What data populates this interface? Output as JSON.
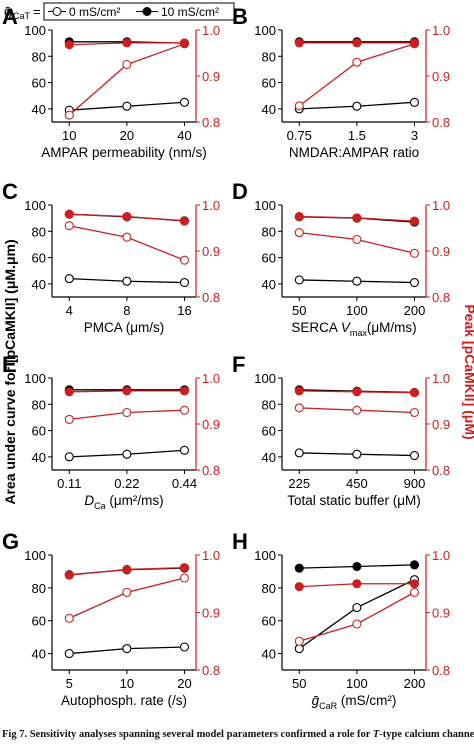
{
  "legend": {
    "symbol": "ḡ",
    "symbol_sub": "CaT",
    "eq": "=",
    "open_label": "0 mS/cm²",
    "filled_label": "10 mS/cm²"
  },
  "shared_labels": {
    "left_ylabel": "Area under curve for [pCaMKII] (μM.μm)",
    "right_ylabel": "Peak [pCaMKII] (μM)"
  },
  "colors": {
    "black": "#000000",
    "red": "#cc1f1f"
  },
  "caption": {
    "bold": "Fig 7. Sensitivity analyses spanning several model parameters confirmed a role for",
    "italic": "T",
    "rest": "-type calcium channels in"
  },
  "chart_data": [
    {
      "id": "A",
      "type": "line",
      "xlabel": "AMPAR permeability (nm/s)",
      "categories": [
        "10",
        "20",
        "40"
      ],
      "ylim_left": [
        30,
        100
      ],
      "yticks_left": [
        40,
        60,
        80,
        100
      ],
      "ylim_right": [
        0.8,
        1.0
      ],
      "yticks_right": [
        "0.8",
        "0.9",
        "1.0"
      ],
      "series": [
        {
          "name": "0 mS/cm²",
          "axis": "left",
          "color": "black",
          "marker": "open",
          "values": [
            39,
            42,
            45
          ]
        },
        {
          "name": "10 mS/cm²",
          "axis": "left",
          "color": "black",
          "marker": "filled",
          "values": [
            91,
            91,
            90
          ]
        },
        {
          "name": "0 mS/cm²",
          "axis": "right",
          "color": "red",
          "marker": "open",
          "values": [
            0.815,
            0.925,
            0.97
          ]
        },
        {
          "name": "10 mS/cm²",
          "axis": "right",
          "color": "red",
          "marker": "filled",
          "values": [
            0.968,
            0.972,
            0.972
          ]
        }
      ]
    },
    {
      "id": "B",
      "type": "line",
      "xlabel": "NMDAR:AMPAR ratio",
      "categories": [
        "0.75",
        "1.5",
        "3"
      ],
      "ylim_left": [
        30,
        100
      ],
      "yticks_left": [
        40,
        60,
        80,
        100
      ],
      "ylim_right": [
        0.8,
        1.0
      ],
      "yticks_right": [
        "0.8",
        "0.9",
        "1.0"
      ],
      "series": [
        {
          "name": "0 mS/cm²",
          "axis": "left",
          "color": "black",
          "marker": "open",
          "values": [
            40,
            42,
            45
          ]
        },
        {
          "name": "10 mS/cm²",
          "axis": "left",
          "color": "black",
          "marker": "filled",
          "values": [
            91,
            91,
            91
          ]
        },
        {
          "name": "0 mS/cm²",
          "axis": "right",
          "color": "red",
          "marker": "open",
          "values": [
            0.835,
            0.93,
            0.97
          ]
        },
        {
          "name": "10 mS/cm²",
          "axis": "right",
          "color": "red",
          "marker": "filled",
          "values": [
            0.972,
            0.972,
            0.972
          ]
        }
      ]
    },
    {
      "id": "C",
      "type": "line",
      "xlabel": "PMCA (μm/s)",
      "categories": [
        "4",
        "8",
        "16"
      ],
      "ylim_left": [
        30,
        100
      ],
      "yticks_left": [
        40,
        60,
        80,
        100
      ],
      "ylim_right": [
        0.8,
        1.0
      ],
      "yticks_right": [
        "0.8",
        "0.9",
        "1.0"
      ],
      "series": [
        {
          "name": "0 mS/cm²",
          "axis": "left",
          "color": "black",
          "marker": "open",
          "values": [
            44,
            42,
            41
          ]
        },
        {
          "name": "10 mS/cm²",
          "axis": "left",
          "color": "black",
          "marker": "filled",
          "values": [
            93,
            91,
            88
          ]
        },
        {
          "name": "0 mS/cm²",
          "axis": "right",
          "color": "red",
          "marker": "open",
          "values": [
            0.955,
            0.93,
            0.88
          ]
        },
        {
          "name": "10 mS/cm²",
          "axis": "right",
          "color": "red",
          "marker": "filled",
          "values": [
            0.98,
            0.975,
            0.965
          ]
        }
      ]
    },
    {
      "id": "D",
      "type": "line",
      "xlabel_main": "SERCA ",
      "xlabel_var": "V",
      "xlabel_sub": "max",
      "xlabel_rest": "(μM/ms)",
      "categories": [
        "50",
        "100",
        "200"
      ],
      "ylim_left": [
        30,
        100
      ],
      "yticks_left": [
        40,
        60,
        80,
        100
      ],
      "ylim_right": [
        0.8,
        1.0
      ],
      "yticks_right": [
        "0.8",
        "0.9",
        "1.0"
      ],
      "series": [
        {
          "name": "0 mS/cm²",
          "axis": "left",
          "color": "black",
          "marker": "open",
          "values": [
            43,
            42,
            41
          ]
        },
        {
          "name": "10 mS/cm²",
          "axis": "left",
          "color": "black",
          "marker": "filled",
          "values": [
            91,
            90,
            87
          ]
        },
        {
          "name": "0 mS/cm²",
          "axis": "right",
          "color": "red",
          "marker": "open",
          "values": [
            0.94,
            0.925,
            0.895
          ]
        },
        {
          "name": "10 mS/cm²",
          "axis": "right",
          "color": "red",
          "marker": "filled",
          "values": [
            0.975,
            0.972,
            0.965
          ]
        }
      ]
    },
    {
      "id": "E",
      "type": "line",
      "xlabel_var": "D",
      "xlabel_sub": "Ca",
      "xlabel_rest": " (μm²/ms)",
      "categories": [
        "0.11",
        "0.22",
        "0.44"
      ],
      "ylim_left": [
        30,
        100
      ],
      "yticks_left": [
        40,
        60,
        80,
        100
      ],
      "ylim_right": [
        0.8,
        1.0
      ],
      "yticks_right": [
        "0.8",
        "0.9",
        "1.0"
      ],
      "series": [
        {
          "name": "0 mS/cm²",
          "axis": "left",
          "color": "black",
          "marker": "open",
          "values": [
            40,
            42,
            45
          ]
        },
        {
          "name": "10 mS/cm²",
          "axis": "left",
          "color": "black",
          "marker": "filled",
          "values": [
            91,
            91,
            91
          ]
        },
        {
          "name": "0 mS/cm²",
          "axis": "right",
          "color": "red",
          "marker": "open",
          "values": [
            0.91,
            0.925,
            0.93
          ]
        },
        {
          "name": "10 mS/cm²",
          "axis": "right",
          "color": "red",
          "marker": "filled",
          "values": [
            0.97,
            0.972,
            0.972
          ]
        }
      ]
    },
    {
      "id": "F",
      "type": "line",
      "xlabel": "Total static buffer (μM)",
      "categories": [
        "225",
        "450",
        "900"
      ],
      "ylim_left": [
        30,
        100
      ],
      "yticks_left": [
        40,
        60,
        80,
        100
      ],
      "ylim_right": [
        0.8,
        1.0
      ],
      "yticks_right": [
        "0.8",
        "0.9",
        "1.0"
      ],
      "series": [
        {
          "name": "0 mS/cm²",
          "axis": "left",
          "color": "black",
          "marker": "open",
          "values": [
            43,
            42,
            41
          ]
        },
        {
          "name": "10 mS/cm²",
          "axis": "left",
          "color": "black",
          "marker": "filled",
          "values": [
            91,
            90,
            89
          ]
        },
        {
          "name": "0 mS/cm²",
          "axis": "right",
          "color": "red",
          "marker": "open",
          "values": [
            0.935,
            0.93,
            0.925
          ]
        },
        {
          "name": "10 mS/cm²",
          "axis": "right",
          "color": "red",
          "marker": "filled",
          "values": [
            0.972,
            0.97,
            0.968
          ]
        }
      ]
    },
    {
      "id": "G",
      "type": "line",
      "xlabel": "Autophosph. rate (/s)",
      "categories": [
        "5",
        "10",
        "20"
      ],
      "ylim_left": [
        30,
        100
      ],
      "yticks_left": [
        40,
        60,
        80,
        100
      ],
      "ylim_right": [
        0.8,
        1.0
      ],
      "yticks_right": [
        "0.8",
        "0.9",
        "1.0"
      ],
      "series": [
        {
          "name": "0 mS/cm²",
          "axis": "left",
          "color": "black",
          "marker": "open",
          "values": [
            40,
            43,
            44
          ]
        },
        {
          "name": "10 mS/cm²",
          "axis": "left",
          "color": "black",
          "marker": "filled",
          "values": [
            88,
            91,
            92
          ]
        },
        {
          "name": "0 mS/cm²",
          "axis": "right",
          "color": "red",
          "marker": "open",
          "values": [
            0.89,
            0.935,
            0.96
          ]
        },
        {
          "name": "10 mS/cm²",
          "axis": "right",
          "color": "red",
          "marker": "filled",
          "values": [
            0.965,
            0.975,
            0.978
          ]
        }
      ]
    },
    {
      "id": "H",
      "type": "line",
      "xlabel_var": "ḡ",
      "xlabel_sub": "CaR",
      "xlabel_rest": " (mS/cm²)",
      "categories": [
        "50",
        "100",
        "200"
      ],
      "ylim_left": [
        30,
        100
      ],
      "yticks_left": [
        40,
        60,
        80,
        100
      ],
      "ylim_right": [
        0.8,
        1.0
      ],
      "yticks_right": [
        "0.8",
        "0.9",
        "1.0"
      ],
      "series": [
        {
          "name": "0 mS/cm²",
          "axis": "left",
          "color": "black",
          "marker": "open",
          "values": [
            43,
            68,
            85
          ]
        },
        {
          "name": "10 mS/cm²",
          "axis": "left",
          "color": "black",
          "marker": "filled",
          "values": [
            92,
            93,
            94
          ]
        },
        {
          "name": "0 mS/cm²",
          "axis": "right",
          "color": "red",
          "marker": "open",
          "values": [
            0.85,
            0.88,
            0.935
          ]
        },
        {
          "name": "10 mS/cm²",
          "axis": "right",
          "color": "red",
          "marker": "filled",
          "values": [
            0.945,
            0.95,
            0.95
          ]
        }
      ]
    }
  ]
}
